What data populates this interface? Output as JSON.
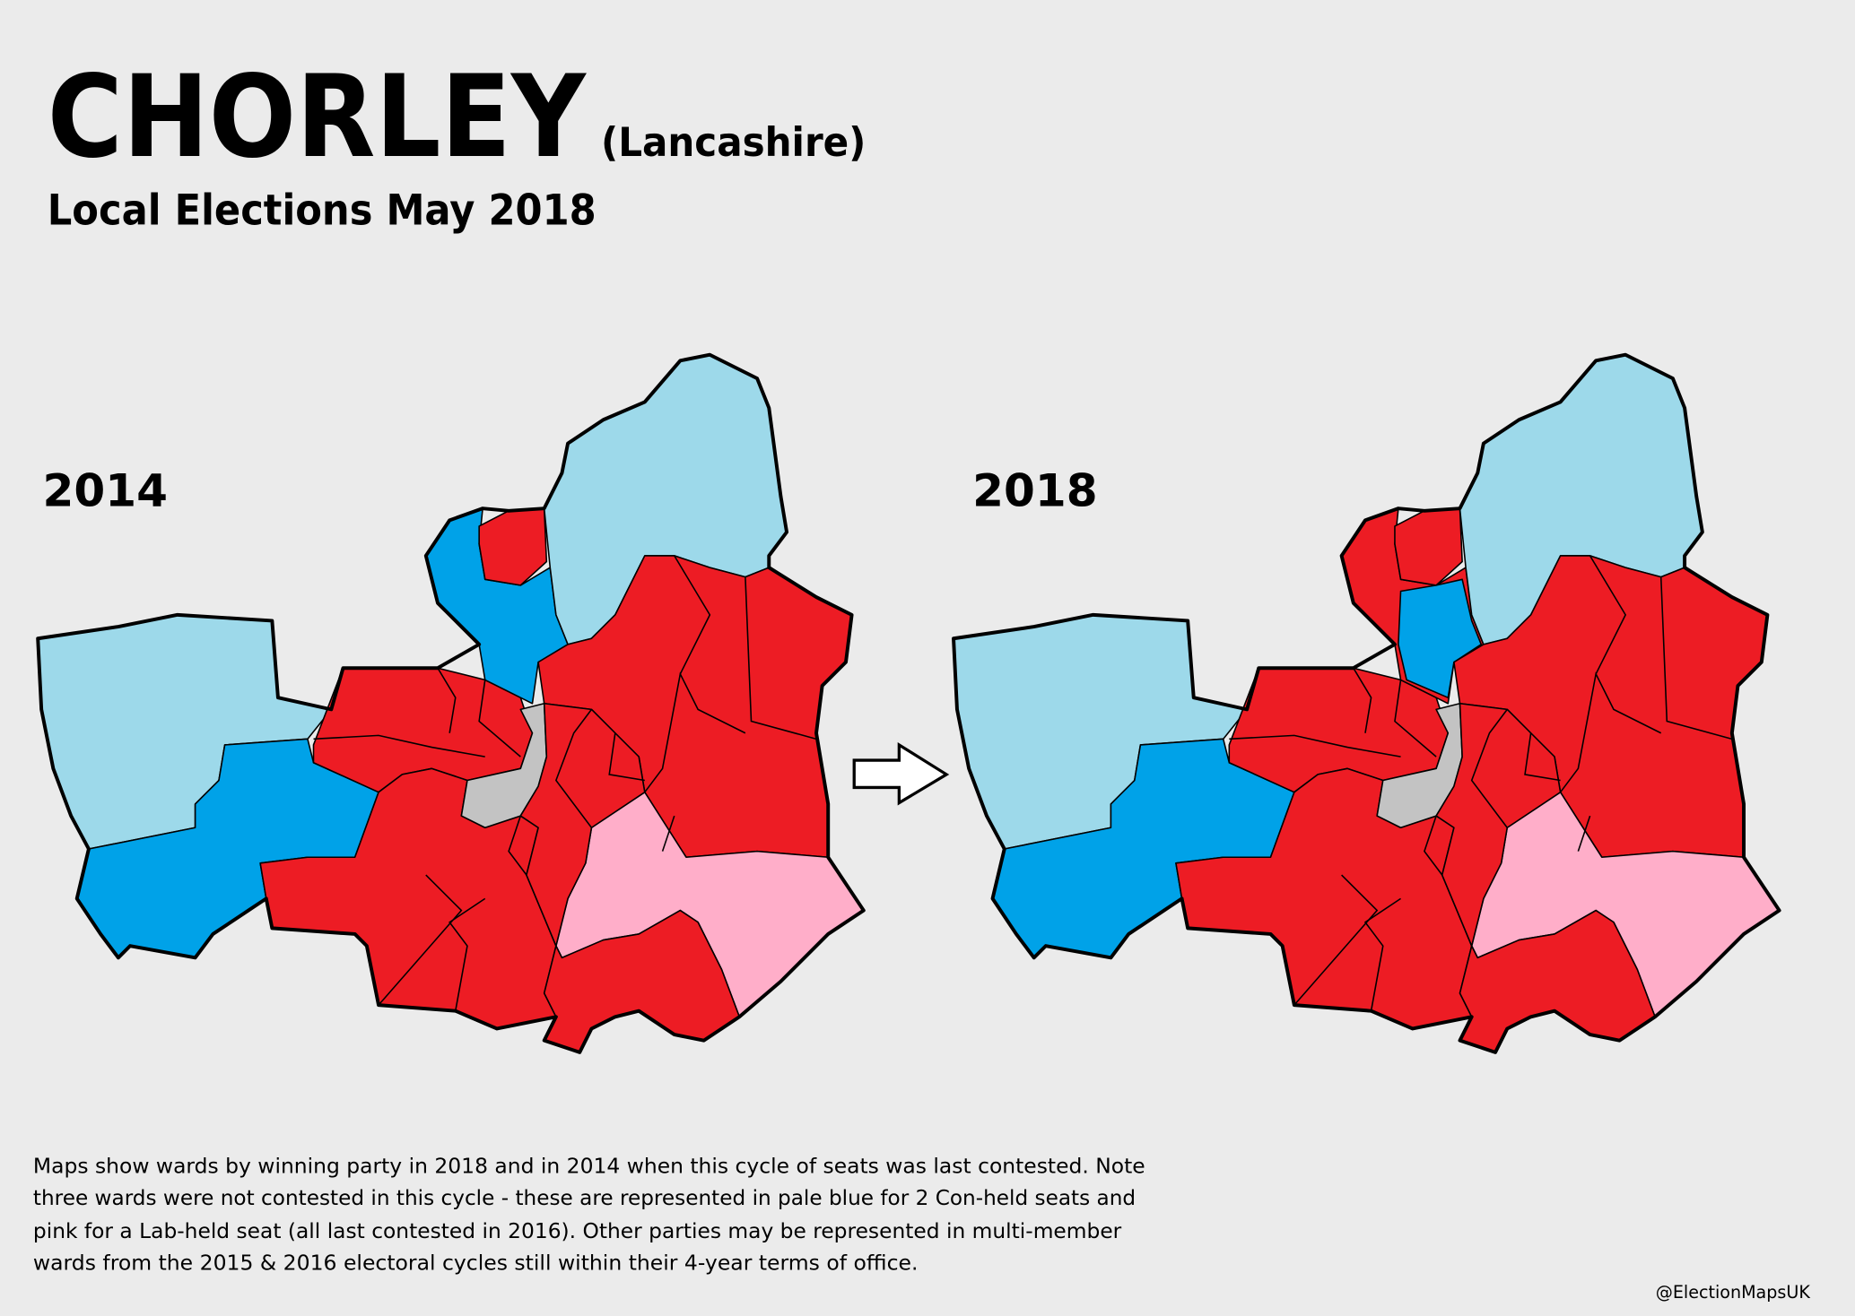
{
  "header": {
    "title": "CHORLEY",
    "region": "(Lancashire)",
    "subtitle": "Local Elections May 2018"
  },
  "maps": [
    {
      "label": "2014"
    },
    {
      "label": "2018"
    }
  ],
  "note": {
    "lines": [
      "Maps show wards by winning party in 2018 and in 2014 when this cycle of seats was last contested. Note",
      "three wards were not contested in this cycle - these are represented in pale blue for 2 Con-held seats and",
      "pink for a Lab-held seat (all last contested in 2016). Other parties may be represented in multi-member",
      "wards from the 2015 & 2016 electoral cycles still within their 4-year terms of office."
    ]
  },
  "credit": "@ElectionMapsUK"
}
